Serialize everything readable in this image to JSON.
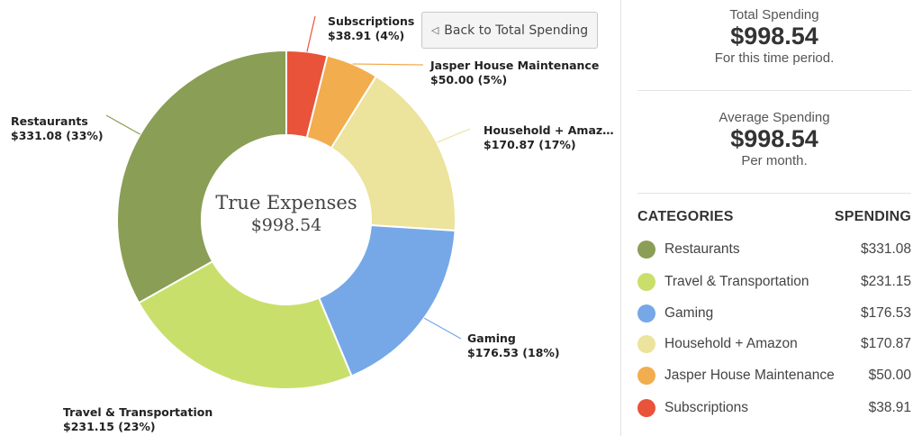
{
  "chart_data": {
    "type": "pie",
    "center_title": "True Expenses",
    "center_value": "$998.54",
    "slices": [
      {
        "name": "Subscriptions",
        "value": 38.91,
        "percent": 4,
        "color": "#e8533a",
        "label_line1": "Subscriptions",
        "label_line2": "$38.91 (4%)"
      },
      {
        "name": "Jasper House Maintenance",
        "value": 50.0,
        "percent": 5,
        "color": "#f2ad4e",
        "label_line1": "Jasper House Maintenance",
        "label_line2": "$50.00 (5%)"
      },
      {
        "name": "Household + Amazon",
        "value": 170.87,
        "percent": 17,
        "color": "#ece39c",
        "label_line1": "Household + Amaz…",
        "label_line2": "$170.87 (17%)"
      },
      {
        "name": "Gaming",
        "value": 176.53,
        "percent": 18,
        "color": "#76a8e8",
        "label_line1": "Gaming",
        "label_line2": "$176.53 (18%)"
      },
      {
        "name": "Travel & Transportation",
        "value": 231.15,
        "percent": 23,
        "color": "#c9df6c",
        "label_line1": "Travel & Transportation",
        "label_line2": "$231.15 (23%)"
      },
      {
        "name": "Restaurants",
        "value": 331.08,
        "percent": 33,
        "color": "#8a9e55",
        "label_line1": "Restaurants",
        "label_line2": "$331.08 (33%)"
      }
    ]
  },
  "back_button": {
    "label": "Back to Total Spending",
    "icon": "back-triangle-icon"
  },
  "summary": {
    "total": {
      "label": "Total Spending",
      "value": "$998.54",
      "sub": "For this time period."
    },
    "average": {
      "label": "Average Spending",
      "value": "$998.54",
      "sub": "Per month."
    }
  },
  "categories": {
    "header_left": "CATEGORIES",
    "header_right": "SPENDING",
    "items": [
      {
        "name": "Restaurants",
        "amount": "$331.08",
        "color": "#8a9e55"
      },
      {
        "name": "Travel & Transportation",
        "amount": "$231.15",
        "color": "#c9df6c"
      },
      {
        "name": "Gaming",
        "amount": "$176.53",
        "color": "#76a8e8"
      },
      {
        "name": "Household + Amazon",
        "amount": "$170.87",
        "color": "#ece39c"
      },
      {
        "name": "Jasper House Maintenance",
        "amount": "$50.00",
        "color": "#f2ad4e"
      },
      {
        "name": "Subscriptions",
        "amount": "$38.91",
        "color": "#e8533a"
      }
    ]
  }
}
